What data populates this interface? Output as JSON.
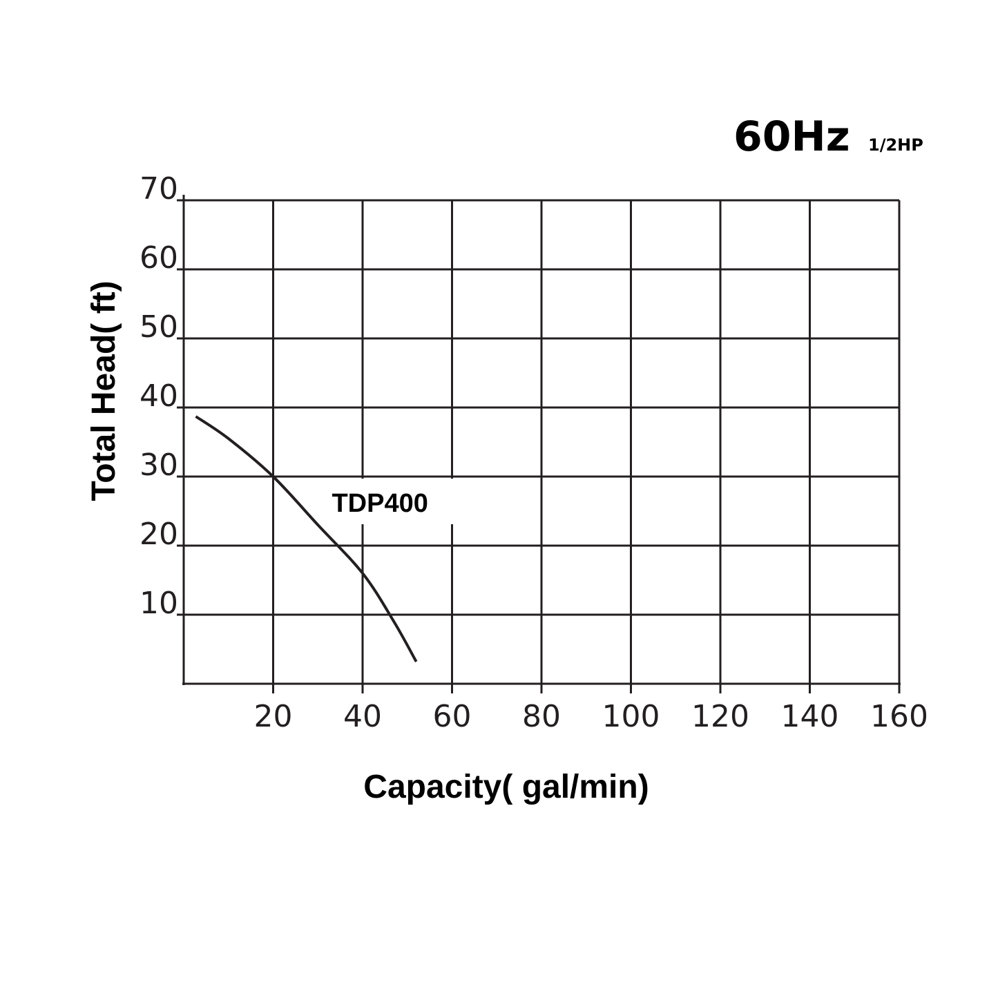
{
  "header": {
    "frequency": "60Hz",
    "power": "1/2HP"
  },
  "chart_data": {
    "type": "line",
    "title": "",
    "xlabel": "Capacity( gal/min)",
    "ylabel": "Total Head( ft)",
    "xlim": [
      0,
      160
    ],
    "ylim": [
      0,
      70
    ],
    "xticks": [
      20,
      40,
      60,
      80,
      100,
      120,
      140,
      160
    ],
    "xtick_labels": [
      "20",
      "40",
      "60",
      "80",
      "100",
      "120",
      "140",
      "160"
    ],
    "yticks": [
      10,
      20,
      30,
      40,
      50,
      60,
      70
    ],
    "ytick_labels": [
      "10",
      "20",
      "30",
      "40",
      "50",
      "60",
      "70"
    ],
    "grid": true,
    "series": [
      {
        "name": "TDP400",
        "color": "#231f20",
        "x": [
          2.7,
          10,
          20,
          30,
          40,
          47,
          52
        ],
        "y": [
          38.7,
          35.5,
          30,
          23,
          16,
          9,
          3.2
        ]
      }
    ]
  }
}
